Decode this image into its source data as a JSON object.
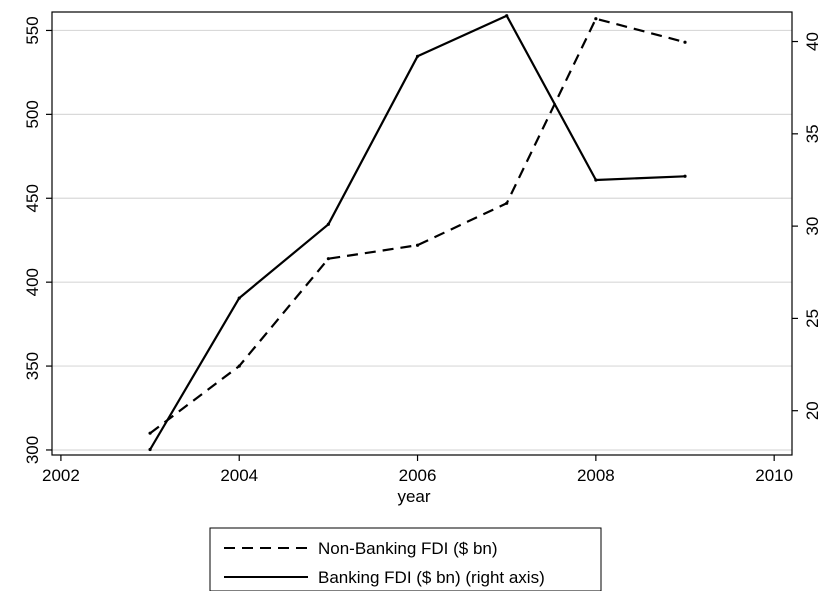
{
  "chart_data": {
    "type": "line",
    "xlabel": "year",
    "x": [
      2003,
      2004,
      2005,
      2006,
      2007,
      2008,
      2009
    ],
    "xlim": [
      2001.9,
      2010.2
    ],
    "xticks": [
      "2002",
      "2004",
      "2006",
      "2008",
      "2010"
    ],
    "xtick_values": [
      2002,
      2004,
      2006,
      2008,
      2010
    ],
    "ylim_left": [
      297,
      561
    ],
    "yticks_left": [
      "300",
      "350",
      "400",
      "450",
      "500",
      "550"
    ],
    "ytick_values_left": [
      300,
      350,
      400,
      450,
      500,
      550
    ],
    "ylim_right": [
      17.6,
      41.6
    ],
    "yticks_right": [
      "20",
      "25",
      "30",
      "35",
      "40"
    ],
    "ytick_values_right": [
      20,
      25,
      30,
      35,
      40
    ],
    "grid": true,
    "legend_position": "bottom",
    "series": [
      {
        "name": "Non-Banking FDI ($ bn)",
        "axis": "left",
        "style": "dashed",
        "color": "#000000",
        "values": [
          310,
          350,
          414,
          422,
          447,
          557,
          543
        ]
      },
      {
        "name": "Banking FDI ($ bn) (right axis)",
        "axis": "right",
        "style": "solid",
        "color": "#000000",
        "values": [
          17.9,
          26.1,
          30.1,
          39.2,
          41.4,
          32.5,
          32.7
        ]
      }
    ]
  }
}
